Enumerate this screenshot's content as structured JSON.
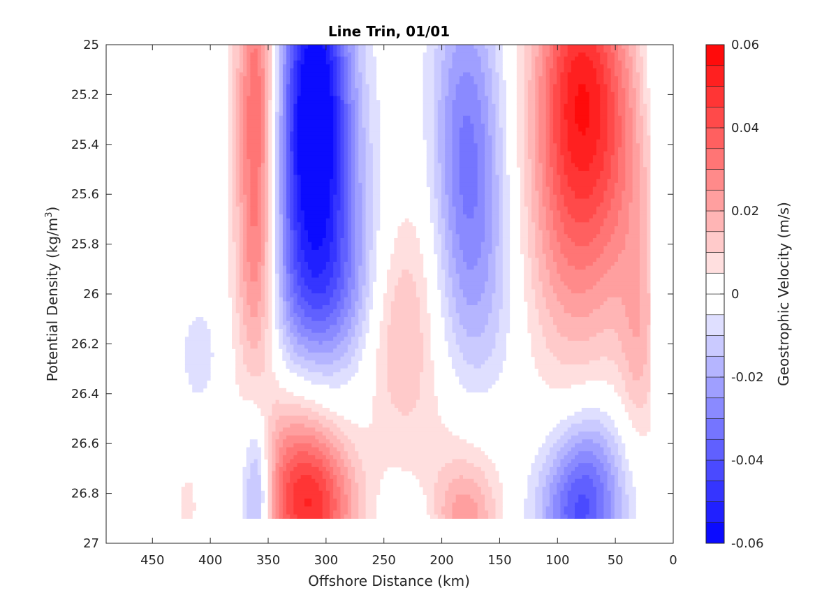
{
  "chart_data": {
    "type": "heatmap",
    "subtype": "filled-contour",
    "title": "Line Trin, 01/01",
    "xlabel": "Offshore Distance (km)",
    "ylabel_main": "Potential Density (kg/m",
    "ylabel_sup": "3",
    "ylabel_close": ")",
    "x_reversed": true,
    "xlim": [
      0,
      490
    ],
    "ylim": [
      25,
      27
    ],
    "y_reversed": true,
    "x_ticks": [
      450,
      400,
      350,
      300,
      250,
      200,
      150,
      100,
      50,
      0
    ],
    "x_tick_labels": [
      "450",
      "400",
      "350",
      "300",
      "250",
      "200",
      "150",
      "100",
      "50",
      "0"
    ],
    "y_ticks": [
      25,
      25.2,
      25.4,
      25.6,
      25.8,
      26,
      26.2,
      26.4,
      26.6,
      26.8,
      27
    ],
    "y_tick_labels": [
      "25",
      "25.2",
      "25.4",
      "25.6",
      "25.8",
      "26",
      "26.2",
      "26.4",
      "26.6",
      "26.8",
      "27"
    ],
    "data_extent": {
      "x": [
        20,
        425
      ],
      "y": [
        25,
        26.9
      ]
    },
    "colorbar": {
      "label": "Geostrophic Velocity (m/s)",
      "clim": [
        -0.06,
        0.06
      ],
      "levels": 24,
      "ticks": [
        0.06,
        0.04,
        0.02,
        0,
        -0.02,
        -0.04,
        -0.06
      ],
      "tick_labels": [
        "0.06",
        "0.04",
        "0.02",
        "0",
        "-0.02",
        "-0.04",
        "-0.06"
      ],
      "positive_color": "#ff0000",
      "negative_color": "#0000ff",
      "zero_color": "#ffffff"
    },
    "features": [
      {
        "x": 360,
        "y": 25.3,
        "sx": 13,
        "sy": 0.55,
        "v": 0.04
      },
      {
        "x": 360,
        "y": 25.95,
        "sx": 14,
        "sy": 0.3,
        "v": 0.015
      },
      {
        "x": 310,
        "y": 25.15,
        "sx": 22,
        "sy": 0.45,
        "v": -0.055
      },
      {
        "x": 310,
        "y": 25.75,
        "sx": 32,
        "sy": 0.4,
        "v": -0.03
      },
      {
        "x": 300,
        "y": 26.0,
        "sx": 32,
        "sy": 0.2,
        "v": -0.012
      },
      {
        "x": 240,
        "y": 26.15,
        "sx": 20,
        "sy": 0.3,
        "v": 0.014
      },
      {
        "x": 215,
        "y": 25.9,
        "sx": 20,
        "sy": 0.5,
        "v": 0.007
      },
      {
        "x": 180,
        "y": 25.35,
        "sx": 22,
        "sy": 0.45,
        "v": -0.028
      },
      {
        "x": 170,
        "y": 25.95,
        "sx": 25,
        "sy": 0.4,
        "v": -0.014
      },
      {
        "x": 80,
        "y": 25.15,
        "sx": 28,
        "sy": 0.4,
        "v": 0.048
      },
      {
        "x": 85,
        "y": 25.8,
        "sx": 32,
        "sy": 0.4,
        "v": 0.022
      },
      {
        "x": 40,
        "y": 25.5,
        "sx": 20,
        "sy": 0.4,
        "v": 0.01
      },
      {
        "x": 30,
        "y": 26.2,
        "sx": 12,
        "sy": 0.3,
        "v": 0.014
      },
      {
        "x": 15,
        "y": 25.1,
        "sx": 10,
        "sy": 0.2,
        "v": -0.008
      },
      {
        "x": 410,
        "y": 26.25,
        "sx": 12,
        "sy": 0.15,
        "v": -0.008
      },
      {
        "x": 410,
        "y": 25.3,
        "sx": 10,
        "sy": 0.3,
        "v": -0.004
      },
      {
        "x": 315,
        "y": 26.85,
        "sx": 28,
        "sy": 0.22,
        "v": 0.048
      },
      {
        "x": 330,
        "y": 26.55,
        "sx": 25,
        "sy": 0.2,
        "v": 0.01
      },
      {
        "x": 360,
        "y": 26.8,
        "sx": 9,
        "sy": 0.22,
        "v": -0.03
      },
      {
        "x": 180,
        "y": 26.9,
        "sx": 20,
        "sy": 0.15,
        "v": 0.022
      },
      {
        "x": 180,
        "y": 26.6,
        "sx": 30,
        "sy": 0.2,
        "v": 0.006
      },
      {
        "x": 80,
        "y": 26.88,
        "sx": 25,
        "sy": 0.2,
        "v": -0.04
      },
      {
        "x": 70,
        "y": 26.6,
        "sx": 20,
        "sy": 0.15,
        "v": -0.01
      },
      {
        "x": 420,
        "y": 26.85,
        "sx": 6,
        "sy": 0.1,
        "v": 0.008
      },
      {
        "x": 230,
        "y": 26.9,
        "sx": 15,
        "sy": 0.08,
        "v": -0.008
      }
    ]
  }
}
